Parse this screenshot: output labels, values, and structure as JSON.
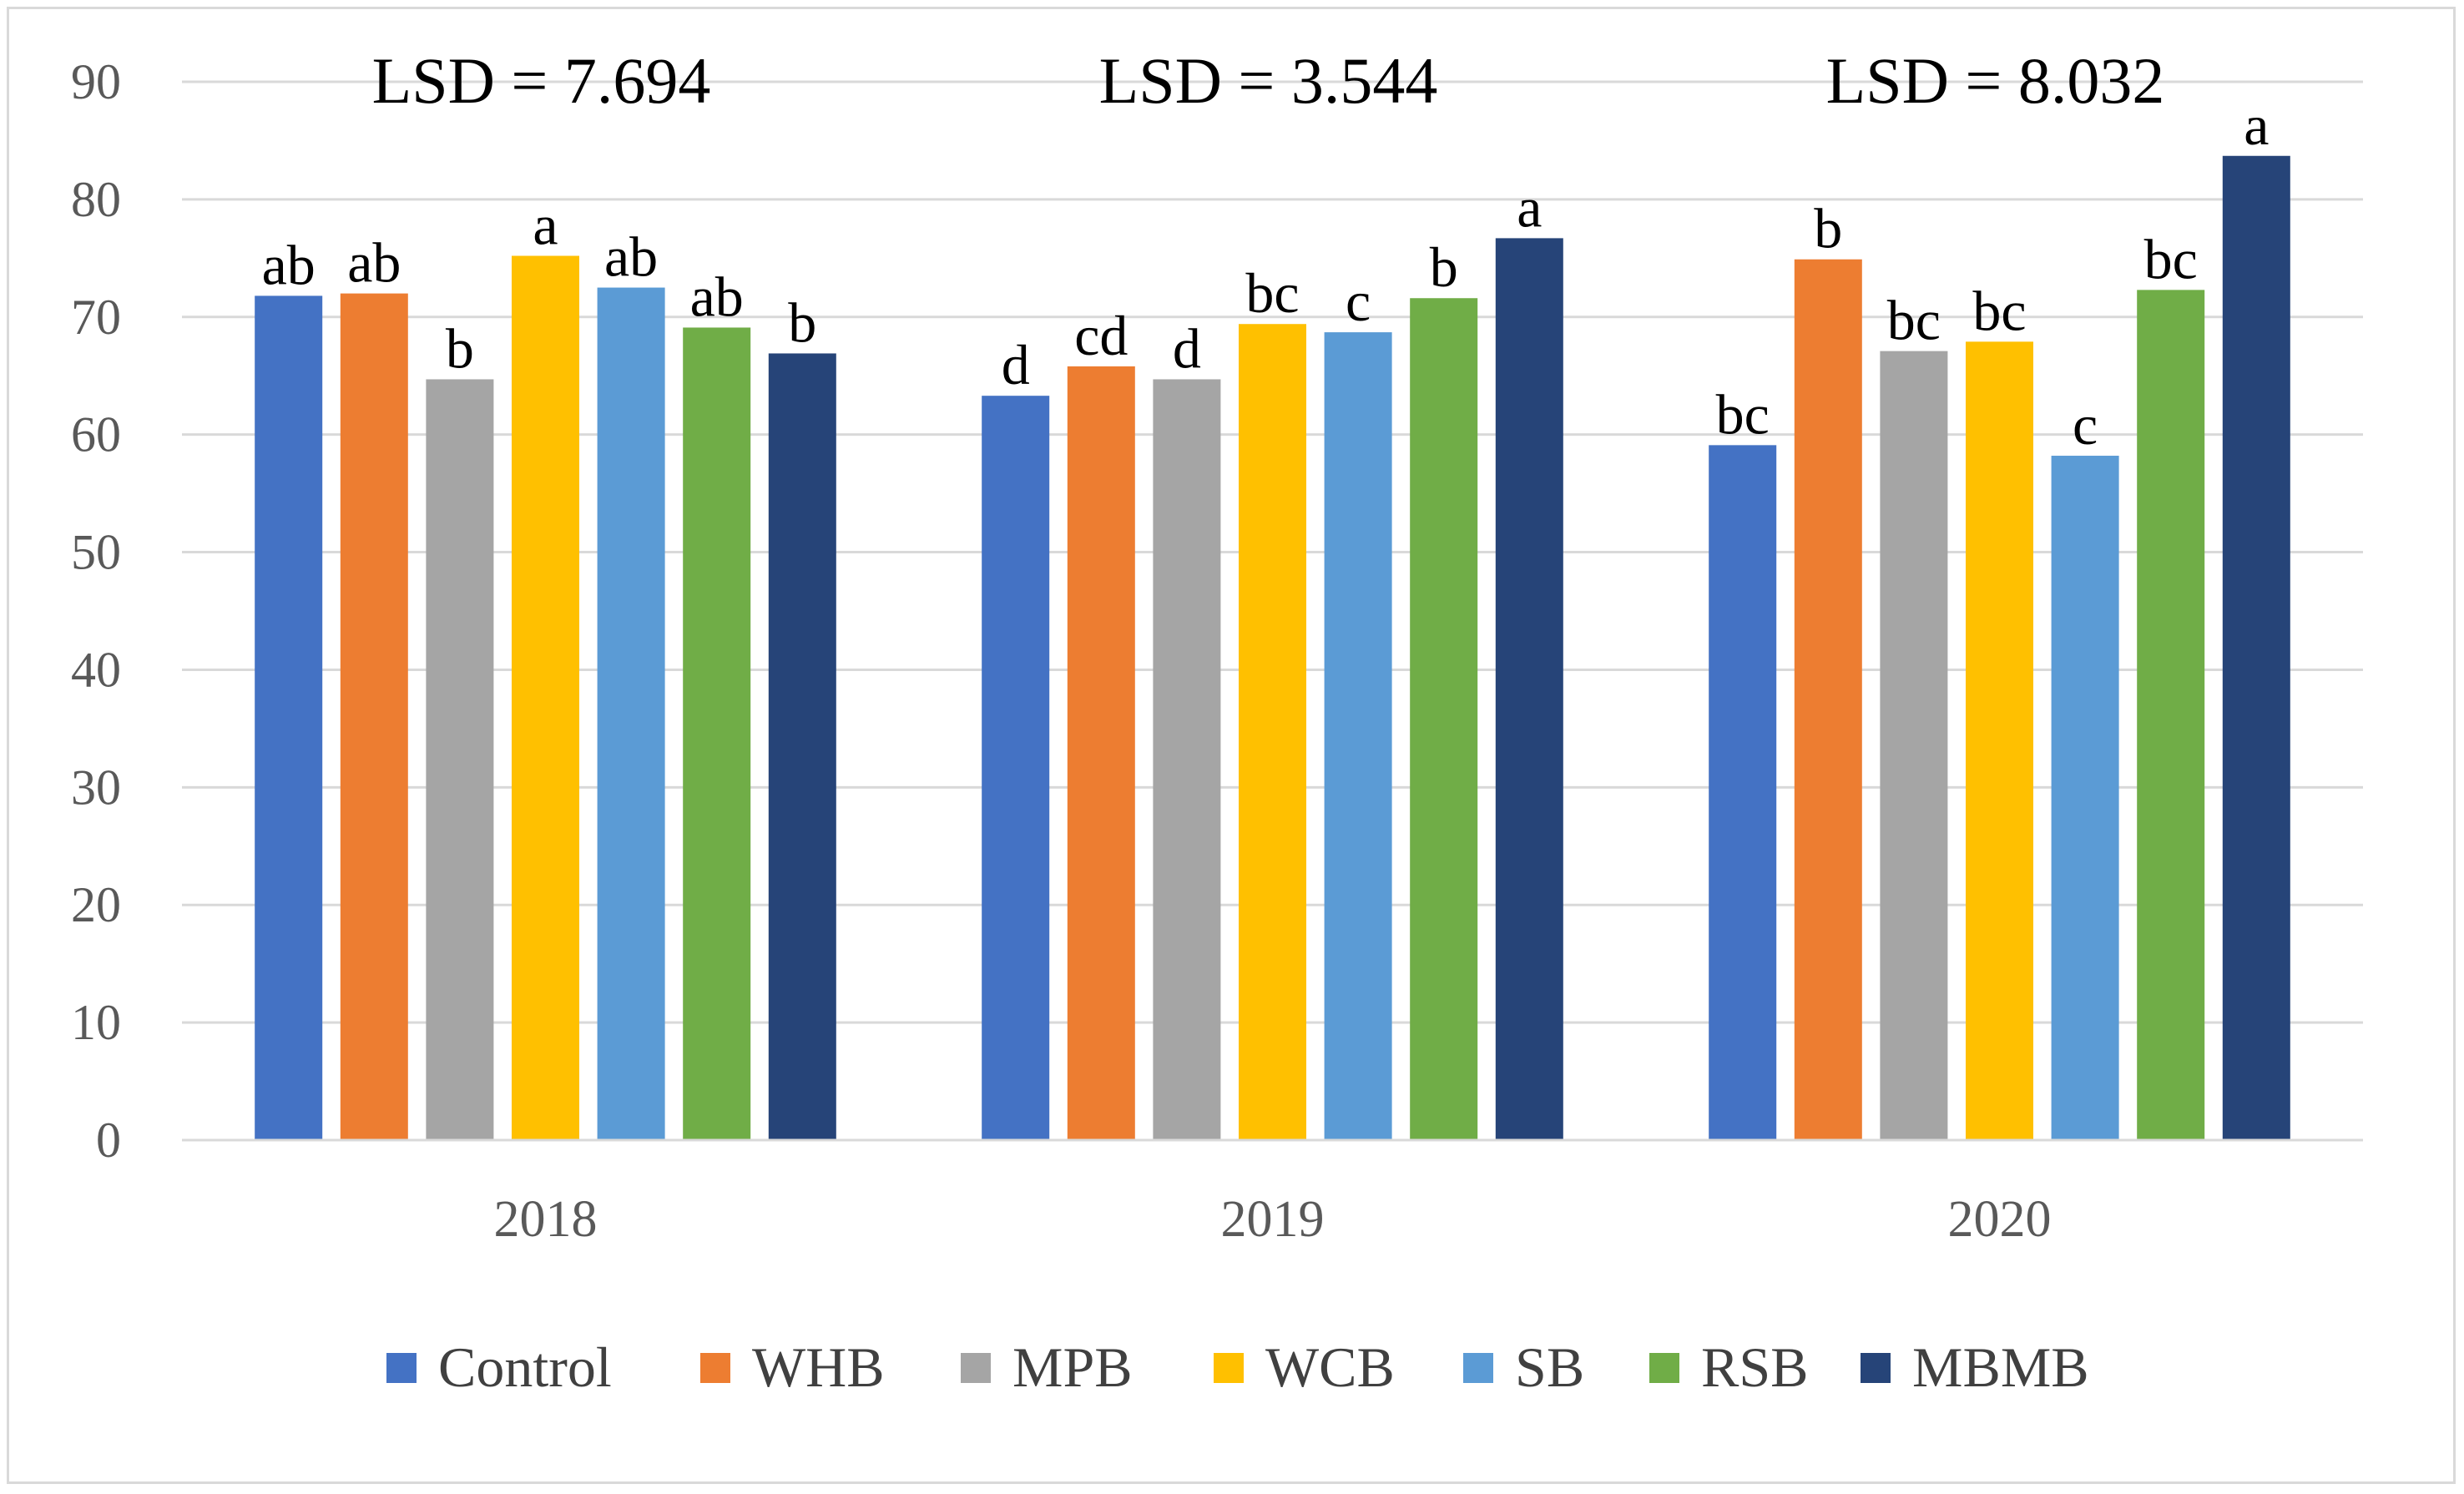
{
  "chart_data": {
    "type": "bar",
    "title": "",
    "xlabel": "",
    "ylabel": "",
    "ylim": [
      0,
      90
    ],
    "yticks": [
      0,
      10,
      20,
      30,
      40,
      50,
      60,
      70,
      80,
      90
    ],
    "grid": true,
    "legend_position": "bottom",
    "categories": [
      "2018",
      "2019",
      "2020"
    ],
    "lsd_labels": [
      "LSD = 7.694",
      "LSD = 3.544",
      "LSD = 8.032"
    ],
    "series": [
      {
        "name": "Control",
        "color": "#4472C4",
        "values": [
          71.8,
          63.3,
          59.1
        ],
        "letters": [
          "ab",
          "d",
          "bc"
        ]
      },
      {
        "name": "WHB",
        "color": "#ED7D31",
        "values": [
          72.0,
          65.8,
          74.9
        ],
        "letters": [
          "ab",
          "cd",
          "b"
        ]
      },
      {
        "name": "MPB",
        "color": "#A5A5A5",
        "values": [
          64.7,
          64.7,
          67.1
        ],
        "letters": [
          "b",
          "d",
          "bc"
        ]
      },
      {
        "name": "WCB",
        "color": "#FFC000",
        "values": [
          75.2,
          69.4,
          67.9
        ],
        "letters": [
          "a",
          "bc",
          "bc"
        ]
      },
      {
        "name": "SB",
        "color": "#5B9BD5",
        "values": [
          72.5,
          68.7,
          58.2
        ],
        "letters": [
          "ab",
          "c",
          "c"
        ]
      },
      {
        "name": "RSB",
        "color": "#70AD47",
        "values": [
          69.1,
          71.6,
          72.3
        ],
        "letters": [
          "ab",
          "b",
          "bc"
        ]
      },
      {
        "name": "MBMB",
        "color": "#264478",
        "values": [
          66.9,
          76.7,
          83.7
        ],
        "letters": [
          "b",
          "a",
          "a"
        ]
      }
    ]
  }
}
